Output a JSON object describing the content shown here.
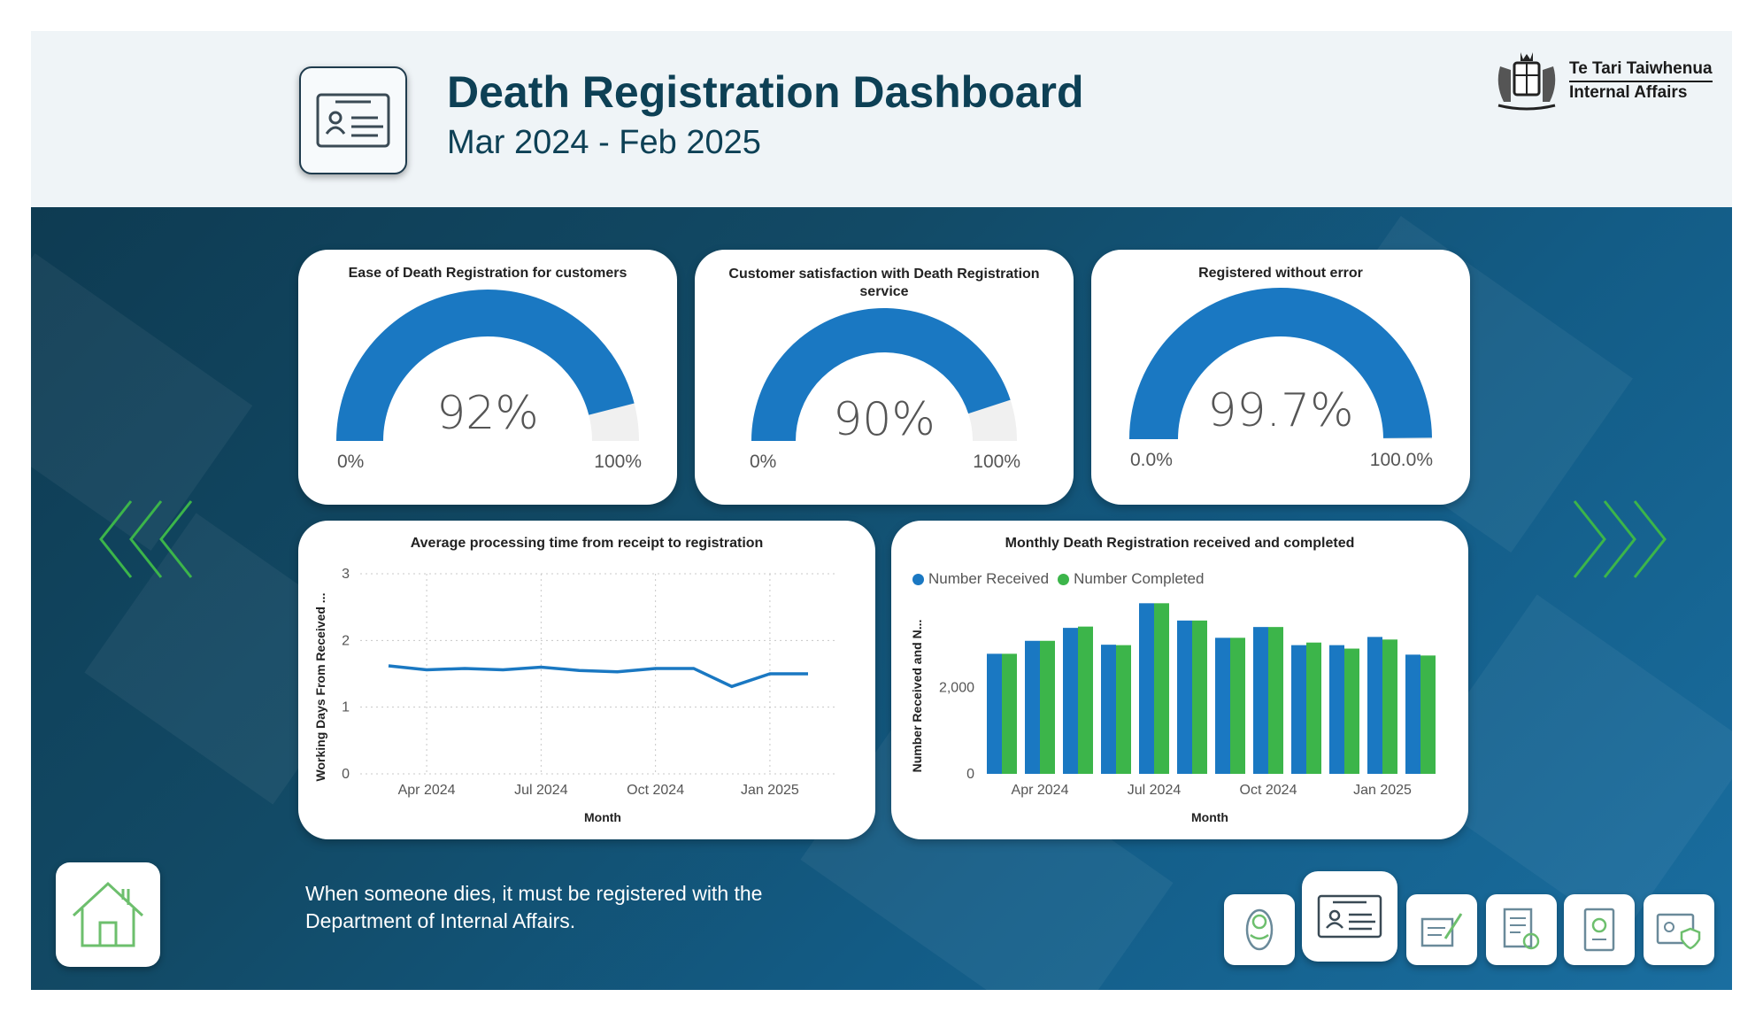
{
  "header": {
    "title": "Death Registration Dashboard",
    "subtitle": "Mar 2024 - Feb 2025",
    "brand_line1": "Te Tari Taiwhenua",
    "brand_line2": "Internal Affairs",
    "icon": "id-card-icon"
  },
  "gauges": [
    {
      "title": "Ease of Death Registration for customers",
      "value_label": "92%",
      "value": 0.92,
      "min_label": "0%",
      "max_label": "100%"
    },
    {
      "title": "Customer satisfaction with Death Registration service",
      "value_label": "90%",
      "value": 0.9,
      "min_label": "0%",
      "max_label": "100%"
    },
    {
      "title": "Registered without error",
      "value_label": "99.7%",
      "value": 0.997,
      "min_label": "0.0%",
      "max_label": "100.0%"
    }
  ],
  "line_card": {
    "title": "Average processing time from receipt to registration",
    "xlabel": "Month",
    "ylabel": "Working Days From Received ..."
  },
  "bar_card": {
    "title": "Monthly Death Registration received and completed",
    "xlabel": "Month",
    "ylabel": "Number Received and N...",
    "legend_received": "Number Received",
    "legend_completed": "Number Completed"
  },
  "chart_data": [
    {
      "type": "line",
      "title": "Average processing time from receipt to registration",
      "xlabel": "Month",
      "ylabel": "Working Days From Received ...",
      "x": [
        "Mar 2024",
        "Apr 2024",
        "May 2024",
        "Jun 2024",
        "Jul 2024",
        "Aug 2024",
        "Sep 2024",
        "Oct 2024",
        "Nov 2024",
        "Dec 2024",
        "Jan 2025",
        "Feb 2025"
      ],
      "x_ticks": [
        "Apr 2024",
        "Jul 2024",
        "Oct 2024",
        "Jan 2025"
      ],
      "y_ticks": [
        "0",
        "1",
        "2",
        "3"
      ],
      "values": [
        1.62,
        1.56,
        1.58,
        1.56,
        1.6,
        1.55,
        1.53,
        1.58,
        1.58,
        1.31,
        1.5,
        1.5
      ],
      "ylim": [
        0,
        3
      ],
      "grid": true,
      "color": "#1a78c2"
    },
    {
      "type": "bar",
      "title": "Monthly Death Registration received and completed",
      "xlabel": "Month",
      "ylabel": "Number Received and N...",
      "categories": [
        "Mar 2024",
        "Apr 2024",
        "May 2024",
        "Jun 2024",
        "Jul 2024",
        "Aug 2024",
        "Sep 2024",
        "Oct 2024",
        "Nov 2024",
        "Dec 2024",
        "Jan 2025",
        "Feb 2025"
      ],
      "x_ticks": [
        "Apr 2024",
        "Jul 2024",
        "Oct 2024",
        "Jan 2025"
      ],
      "y_ticks": [
        "0",
        "2,000"
      ],
      "series": [
        {
          "name": "Number Received",
          "color": "#1a78c2",
          "values": [
            2780,
            3080,
            3380,
            2990,
            3950,
            3550,
            3150,
            3400,
            2980,
            2980,
            3170,
            2760
          ]
        },
        {
          "name": "Number Completed",
          "color": "#3cb54a",
          "values": [
            2780,
            3080,
            3410,
            2980,
            3950,
            3550,
            3150,
            3400,
            3040,
            2900,
            3110,
            2740
          ]
        }
      ],
      "ylim": [
        0,
        4100
      ],
      "legend": "top-left"
    }
  ],
  "description": "When someone dies, it must be registered with the Department of Internal Affairs.",
  "nav": {
    "left_arrow": "chevron-left-icon",
    "right_arrow": "chevron-right-icon",
    "home": "home-icon",
    "buttons": [
      "baby-icon",
      "id-card-icon",
      "certificate-pen-icon",
      "document-seal-icon",
      "passport-icon",
      "id-shield-icon"
    ]
  },
  "colors": {
    "accent": "#1a78c2",
    "green": "#3cb54a",
    "title": "#0d4055",
    "gauge_track": "#f0f0f0"
  }
}
